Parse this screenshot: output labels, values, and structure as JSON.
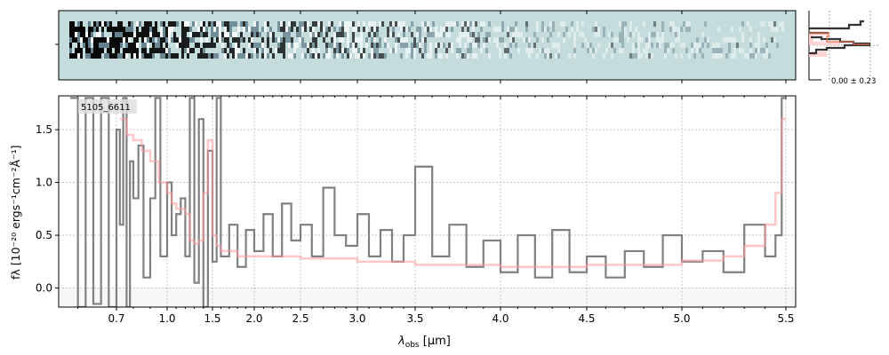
{
  "chart_data": {
    "type": "line",
    "title": "",
    "object_label": "5105_6611",
    "xlabel": "λobs [µm]",
    "xlabel_main": "λ",
    "xlabel_sub": "obs",
    "xlabel_unit": " [µm]",
    "ylabel": "fλ [10⁻²⁰ ergs⁻¹cm⁻²Å⁻¹]",
    "ylim": [
      -0.18,
      1.82
    ],
    "xlim": [
      0.55,
      5.52
    ],
    "grid": true,
    "x_ticks": [
      0.7,
      1.0,
      1.5,
      2.0,
      2.5,
      3.0,
      3.5,
      4.0,
      4.5,
      5.0,
      5.5
    ],
    "x_tick_labels": [
      "0.7",
      "1.0",
      "1.5",
      "2.0",
      "2.5",
      "3.0",
      "3.5",
      "4.0",
      "4.5",
      "5.0",
      "5.5"
    ],
    "y_ticks": [
      0.0,
      0.5,
      1.0,
      1.5
    ],
    "y_tick_labels": [
      "0.0",
      "0.5",
      "1.0",
      "1.5"
    ],
    "series": [
      {
        "name": "data",
        "color": "#808080",
        "x": [
          0.58,
          0.6,
          0.62,
          0.64,
          0.66,
          0.68,
          0.7,
          0.72,
          0.74,
          0.76,
          0.78,
          0.8,
          0.83,
          0.86,
          0.9,
          0.93,
          0.96,
          1.0,
          1.05,
          1.1,
          1.15,
          1.2,
          1.25,
          1.3,
          1.35,
          1.4,
          1.45,
          1.5,
          1.55,
          1.6,
          1.7,
          1.8,
          1.9,
          2.0,
          2.1,
          2.2,
          2.3,
          2.4,
          2.5,
          2.6,
          2.7,
          2.8,
          2.9,
          3.0,
          3.1,
          3.2,
          3.3,
          3.4,
          3.5,
          3.6,
          3.7,
          3.8,
          3.9,
          4.0,
          4.1,
          4.2,
          4.3,
          4.4,
          4.5,
          4.6,
          4.7,
          4.8,
          4.9,
          5.0,
          5.1,
          5.2,
          5.3,
          5.4,
          5.45,
          5.48
        ],
        "y": [
          1.8,
          -0.18,
          1.8,
          -0.15,
          1.8,
          -0.18,
          1.5,
          0.6,
          1.8,
          -0.18,
          1.2,
          0.85,
          1.35,
          0.1,
          0.85,
          1.8,
          0.3,
          1.0,
          0.5,
          0.7,
          0.85,
          0.3,
          1.8,
          0.05,
          1.6,
          -0.18,
          1.3,
          0.25,
          1.8,
          0.3,
          0.6,
          0.2,
          0.55,
          0.35,
          0.7,
          0.3,
          0.8,
          0.45,
          0.6,
          0.3,
          0.95,
          0.5,
          0.4,
          0.7,
          0.3,
          0.55,
          0.25,
          0.5,
          1.15,
          0.3,
          0.6,
          0.2,
          0.45,
          0.15,
          0.5,
          0.1,
          0.55,
          0.15,
          0.3,
          0.1,
          0.35,
          0.2,
          0.5,
          0.25,
          0.35,
          0.15,
          0.6,
          0.3,
          0.5,
          1.8
        ]
      },
      {
        "name": "model",
        "color": "#ff9999",
        "x": [
          0.72,
          0.76,
          0.8,
          0.85,
          0.9,
          0.95,
          1.0,
          1.05,
          1.1,
          1.2,
          1.25,
          1.3,
          1.35,
          1.4,
          1.45,
          1.5,
          1.55,
          1.6,
          1.8,
          2.0,
          2.5,
          3.0,
          3.5,
          4.0,
          4.5,
          5.0,
          5.2,
          5.3,
          5.4,
          5.45,
          5.48
        ],
        "y": [
          1.6,
          1.45,
          1.4,
          1.3,
          1.2,
          1.0,
          0.9,
          0.8,
          0.75,
          0.7,
          0.45,
          0.42,
          0.45,
          0.9,
          1.4,
          0.5,
          0.4,
          0.35,
          0.3,
          0.3,
          0.28,
          0.25,
          0.22,
          0.2,
          0.22,
          0.26,
          0.3,
          0.4,
          0.6,
          0.9,
          1.6
        ]
      }
    ],
    "side_panel_label": "0.00 ± 0.23"
  }
}
